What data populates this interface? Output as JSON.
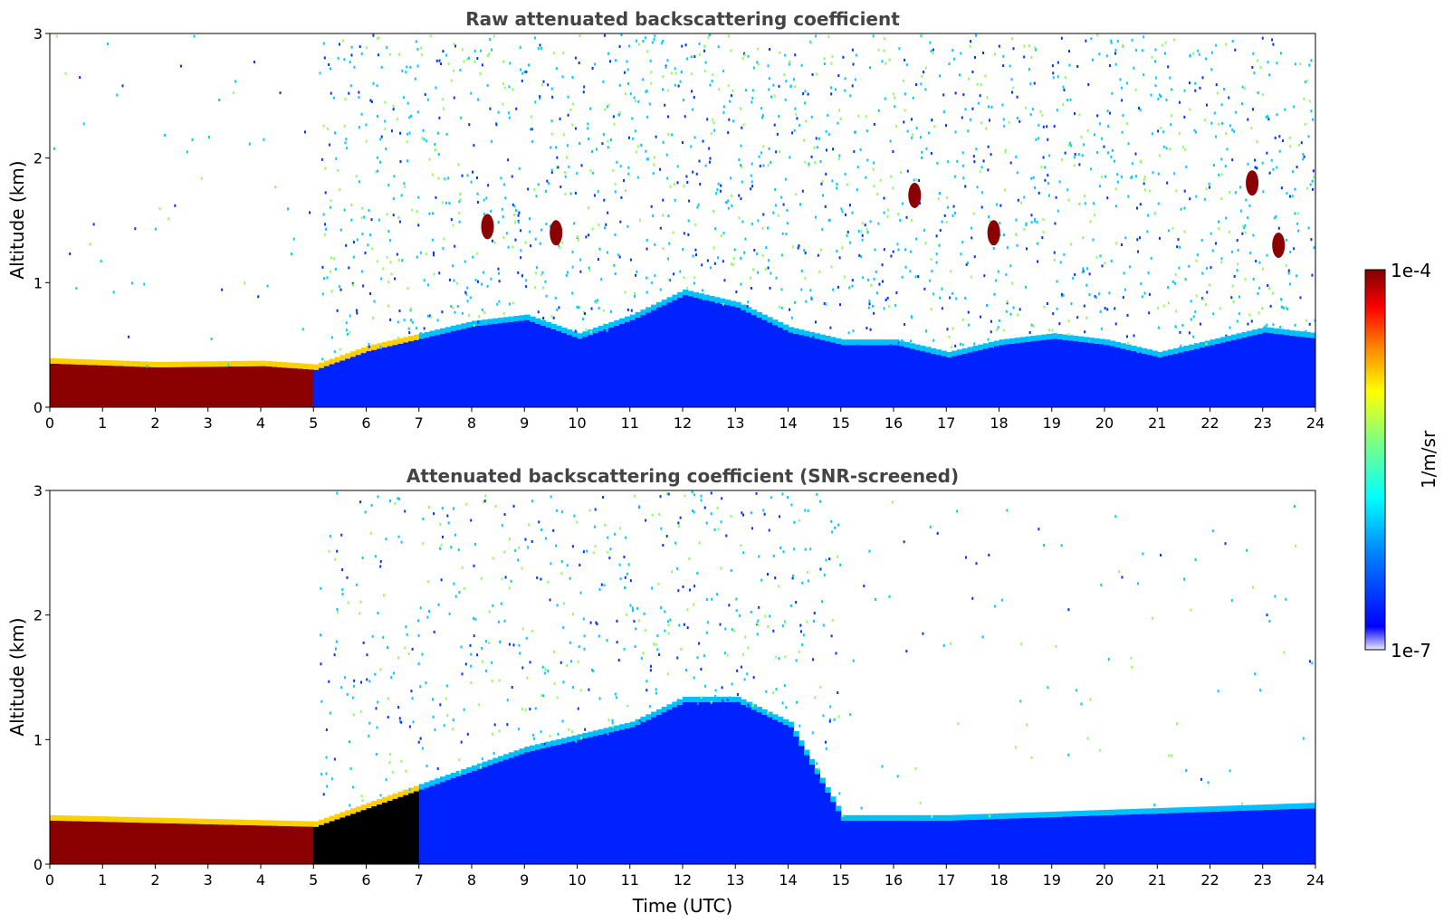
{
  "chart_data": [
    {
      "type": "heatmap",
      "title": "Raw attenuated backscattering coefficient",
      "xlabel": "",
      "ylabel": "Altitude (km)",
      "xlim": [
        0,
        24
      ],
      "ylim": [
        0,
        3
      ],
      "xticks": [
        "0",
        "1",
        "2",
        "3",
        "4",
        "5",
        "6",
        "7",
        "8",
        "9",
        "10",
        "11",
        "12",
        "13",
        "14",
        "15",
        "16",
        "17",
        "18",
        "19",
        "20",
        "21",
        "22",
        "23",
        "24"
      ],
      "yticks": [
        "0",
        "1",
        "2",
        "3"
      ],
      "color_scale": "log",
      "color_range": [
        "1e-7",
        "1e-4"
      ],
      "boundary_layer_top_km": [
        [
          0,
          0.35
        ],
        [
          2,
          0.32
        ],
        [
          4,
          0.33
        ],
        [
          5,
          0.3
        ],
        [
          6,
          0.45
        ],
        [
          7,
          0.55
        ],
        [
          8,
          0.65
        ],
        [
          9,
          0.7
        ],
        [
          10,
          0.55
        ],
        [
          11,
          0.7
        ],
        [
          12,
          0.9
        ],
        [
          13,
          0.8
        ],
        [
          14,
          0.6
        ],
        [
          15,
          0.5
        ],
        [
          16,
          0.5
        ],
        [
          17,
          0.4
        ],
        [
          18,
          0.5
        ],
        [
          19,
          0.55
        ],
        [
          20,
          0.5
        ],
        [
          21,
          0.4
        ],
        [
          22,
          0.5
        ],
        [
          23,
          0.6
        ],
        [
          24,
          0.55
        ]
      ],
      "cloud_features": [
        {
          "time_h": 8.3,
          "alt_km": 1.45
        },
        {
          "time_h": 9.6,
          "alt_km": 1.4
        },
        {
          "time_h": 16.4,
          "alt_km": 1.7
        },
        {
          "time_h": 17.9,
          "alt_km": 1.4
        },
        {
          "time_h": 22.8,
          "alt_km": 1.8
        },
        {
          "time_h": 23.3,
          "alt_km": 1.3
        }
      ]
    },
    {
      "type": "heatmap",
      "title": "Attenuated backscattering coefficient (SNR-screened)",
      "xlabel": "Time (UTC)",
      "ylabel": "Altitude (km)",
      "xlim": [
        0,
        24
      ],
      "ylim": [
        0,
        3
      ],
      "xticks": [
        "0",
        "1",
        "2",
        "3",
        "4",
        "5",
        "6",
        "7",
        "8",
        "9",
        "10",
        "11",
        "12",
        "13",
        "14",
        "15",
        "16",
        "17",
        "18",
        "19",
        "20",
        "21",
        "22",
        "23",
        "24"
      ],
      "yticks": [
        "0",
        "1",
        "2",
        "3"
      ],
      "color_scale": "log",
      "color_range": [
        "1e-7",
        "1e-4"
      ],
      "screened_top_km": [
        [
          0,
          0.35
        ],
        [
          5,
          0.3
        ],
        [
          7,
          0.6
        ],
        [
          9,
          0.9
        ],
        [
          11,
          1.1
        ],
        [
          12,
          1.3
        ],
        [
          13,
          1.3
        ],
        [
          14,
          1.1
        ],
        [
          15,
          0.35
        ],
        [
          17,
          0.35
        ],
        [
          24,
          0.45
        ]
      ]
    }
  ],
  "colorbar": {
    "label": "1/m/sr",
    "top_label": "1e-4",
    "bottom_label": "1e-7",
    "colormap": [
      "#e8e8ff",
      "#0000ff",
      "#0080ff",
      "#00ffff",
      "#80ff80",
      "#ffff00",
      "#ff8000",
      "#ff0000",
      "#800000"
    ]
  },
  "colors": {
    "background": "#ffffff",
    "title_text": "#444444",
    "dense_layer": "#8b0000",
    "aerosol": "#0033ff",
    "sparse_noise": "#00ccff",
    "screened_saturation": "#000000"
  }
}
